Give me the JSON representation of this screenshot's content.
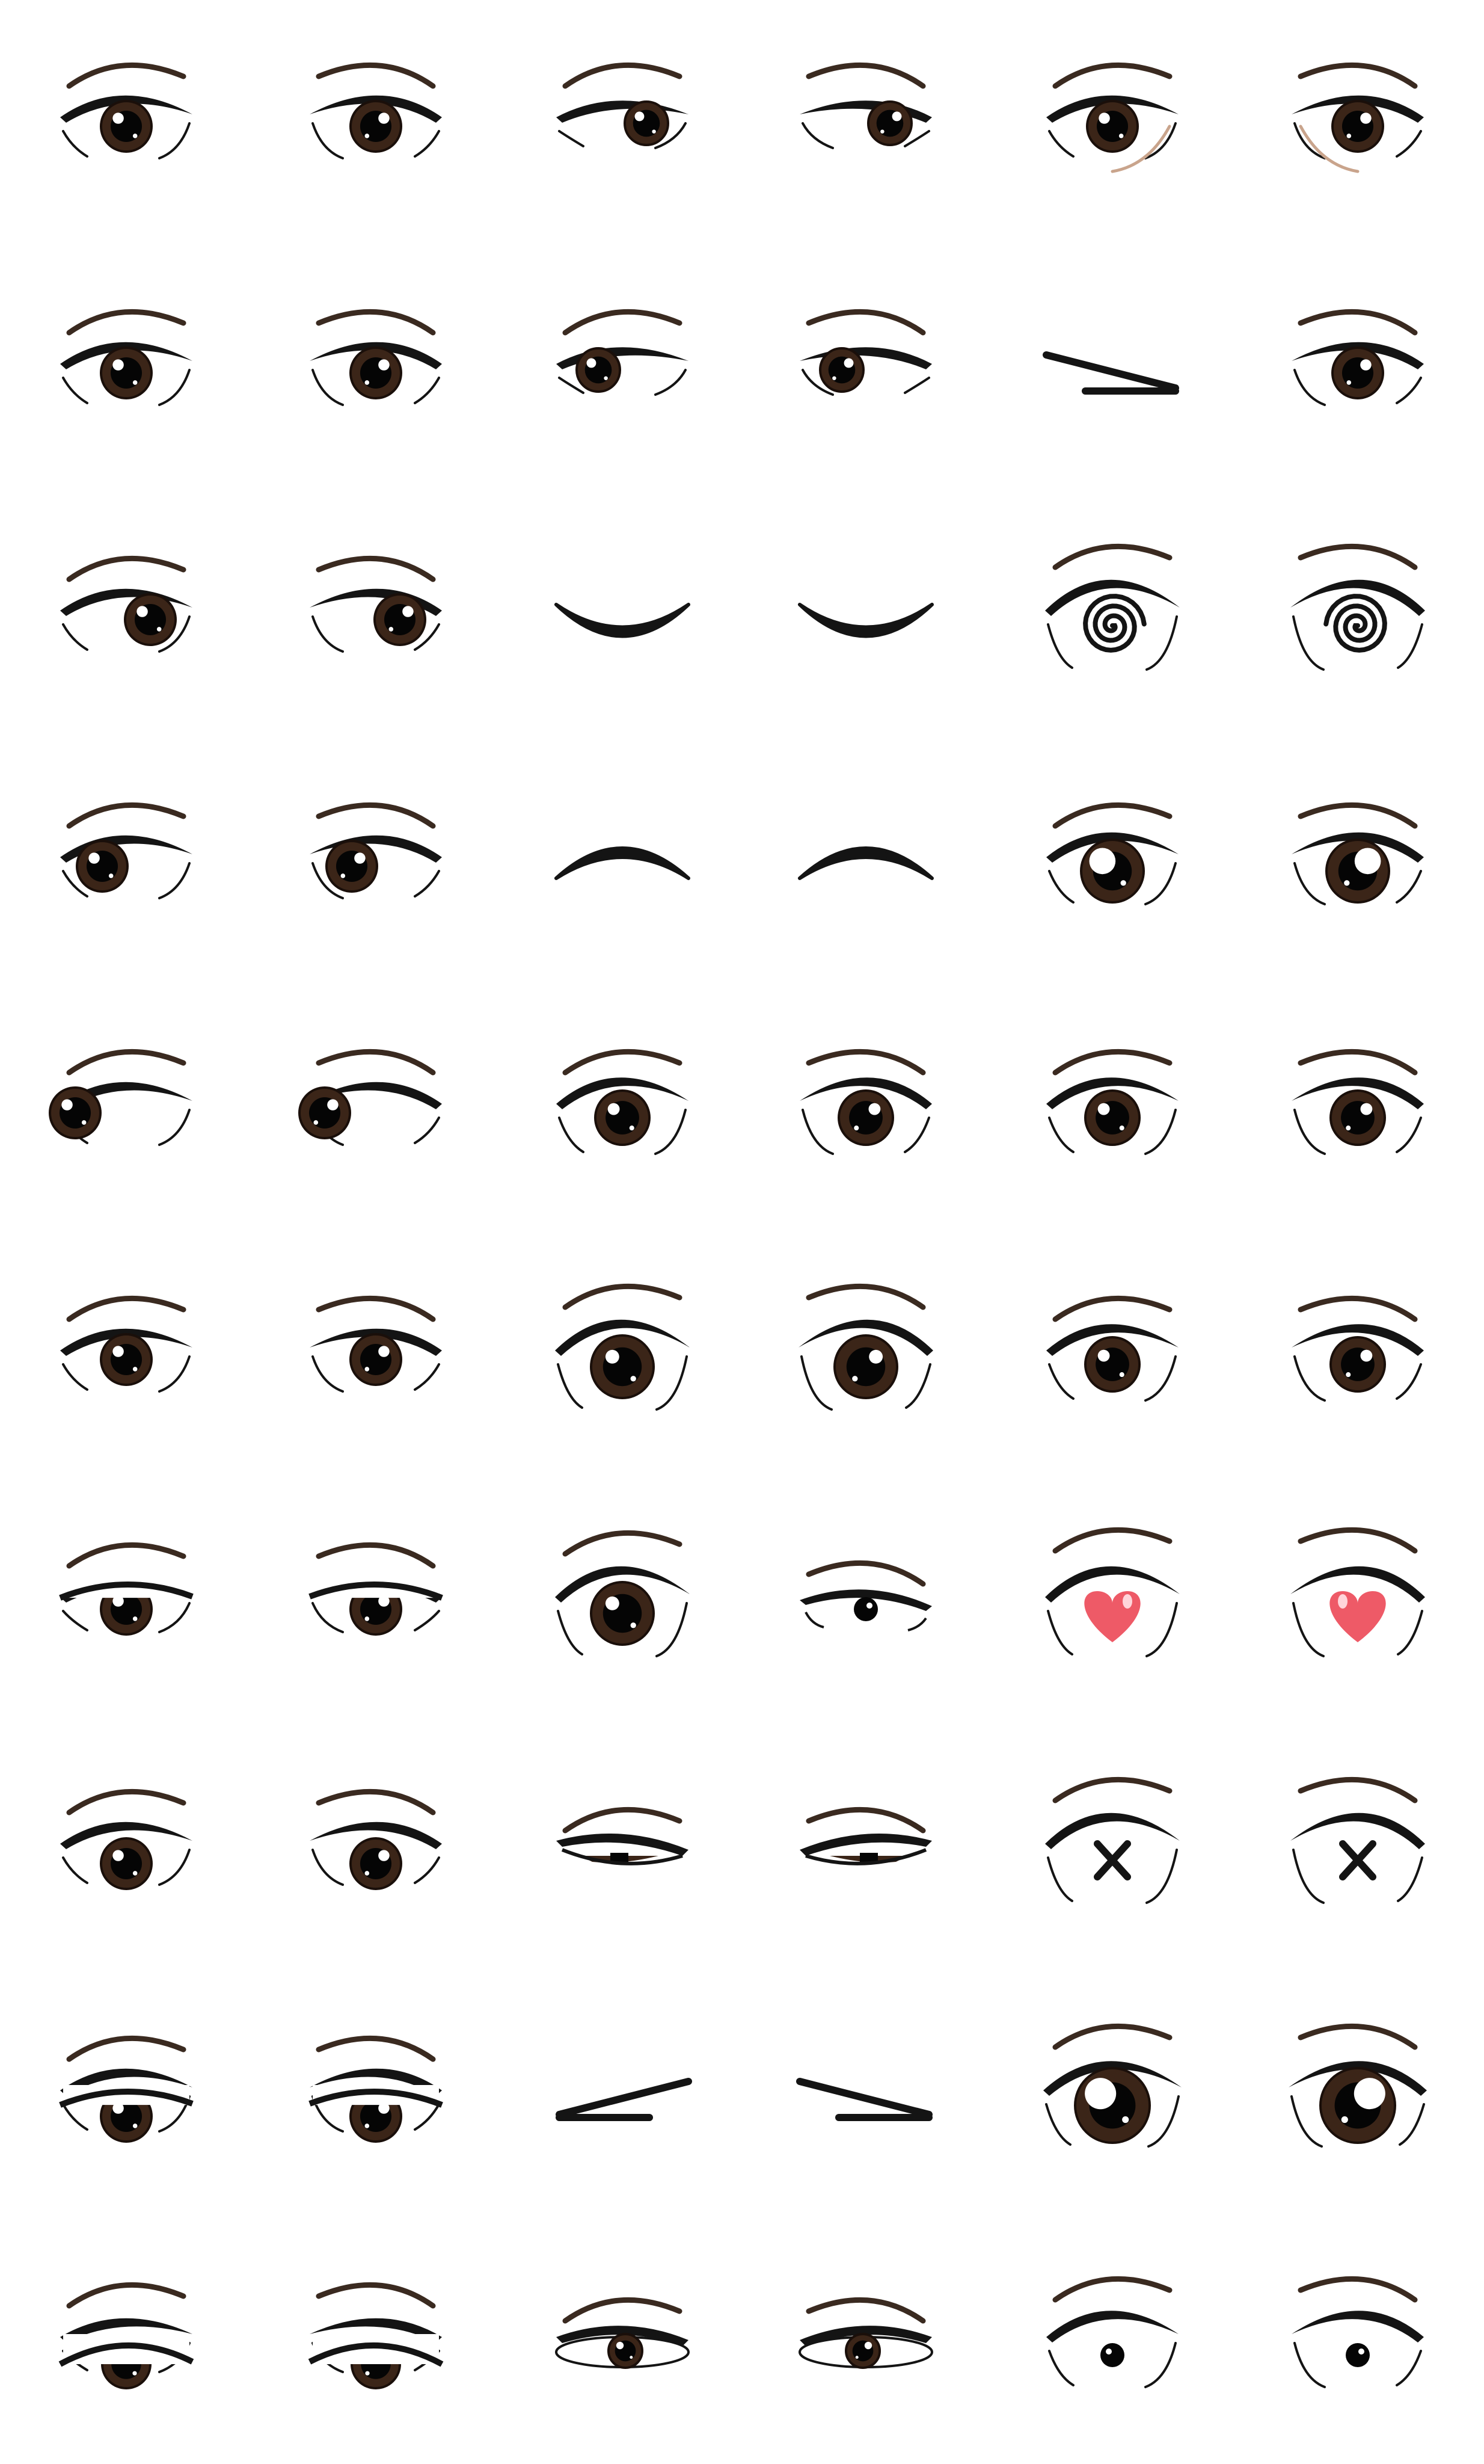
{
  "title": "",
  "colors": {
    "background": "#ffffff",
    "ink": "#141414",
    "brow": "#3a2a20",
    "iris": "#3b2518",
    "iris_ring": "#1a0f0a",
    "pupil": "#050505",
    "highlight": "#ffffff",
    "skin_line": "#c9a48c",
    "heart": "#ee5a67",
    "heart_shine": "#ffd5da"
  },
  "rows": [
    {
      "cells": [
        {
          "kind": "eye",
          "side": "left",
          "look": "center",
          "size": "normal"
        },
        {
          "kind": "eye",
          "side": "right",
          "look": "center",
          "size": "normal"
        },
        {
          "kind": "eye",
          "side": "left",
          "look": "right",
          "size": "narrow"
        },
        {
          "kind": "eye",
          "side": "right",
          "look": "right",
          "size": "narrow"
        },
        {
          "kind": "eye",
          "side": "left",
          "look": "center",
          "size": "normal",
          "extra": "cheek-line"
        },
        {
          "kind": "eye",
          "side": "right",
          "look": "center",
          "size": "normal",
          "extra": "cheek-line"
        }
      ]
    },
    {
      "cells": [
        {
          "kind": "eye",
          "side": "left",
          "look": "center",
          "size": "normal"
        },
        {
          "kind": "eye",
          "side": "right",
          "look": "center",
          "size": "normal"
        },
        {
          "kind": "eye",
          "side": "left",
          "look": "left",
          "size": "narrow"
        },
        {
          "kind": "eye",
          "side": "right",
          "look": "left",
          "size": "narrow"
        },
        {
          "kind": "wink",
          "shape": "left-arrow"
        },
        {
          "kind": "eye",
          "side": "right",
          "look": "center",
          "size": "normal"
        }
      ]
    },
    {
      "cells": [
        {
          "kind": "eye",
          "side": "left",
          "look": "right",
          "size": "normal"
        },
        {
          "kind": "eye",
          "side": "right",
          "look": "right",
          "size": "normal"
        },
        {
          "kind": "closed",
          "shape": "smile"
        },
        {
          "kind": "closed",
          "shape": "smile"
        },
        {
          "kind": "spiral",
          "side": "left"
        },
        {
          "kind": "spiral",
          "side": "right"
        }
      ]
    },
    {
      "cells": [
        {
          "kind": "eye",
          "side": "left",
          "look": "left",
          "size": "normal"
        },
        {
          "kind": "eye",
          "side": "right",
          "look": "left",
          "size": "normal"
        },
        {
          "kind": "closed",
          "shape": "arch"
        },
        {
          "kind": "closed",
          "shape": "arch"
        },
        {
          "kind": "eye",
          "side": "left",
          "look": "center",
          "size": "big-shine"
        },
        {
          "kind": "eye",
          "side": "right",
          "look": "center",
          "size": "big-shine"
        }
      ]
    },
    {
      "cells": [
        {
          "kind": "eye",
          "side": "left",
          "look": "far-left",
          "size": "normal"
        },
        {
          "kind": "eye",
          "side": "right",
          "look": "far-left",
          "size": "normal"
        },
        {
          "kind": "eye",
          "side": "left",
          "look": "center",
          "size": "wide"
        },
        {
          "kind": "eye",
          "side": "right",
          "look": "center",
          "size": "wide"
        },
        {
          "kind": "eye",
          "side": "left",
          "look": "center",
          "size": "wide"
        },
        {
          "kind": "eye",
          "side": "right",
          "look": "center",
          "size": "wide"
        }
      ]
    },
    {
      "cells": [
        {
          "kind": "eye",
          "side": "left",
          "look": "center",
          "size": "normal"
        },
        {
          "kind": "eye",
          "side": "right",
          "look": "center",
          "size": "normal"
        },
        {
          "kind": "eye",
          "side": "left",
          "look": "center",
          "size": "surprised"
        },
        {
          "kind": "eye",
          "side": "right",
          "look": "center",
          "size": "surprised"
        },
        {
          "kind": "eye",
          "side": "left",
          "look": "center",
          "size": "wide"
        },
        {
          "kind": "eye",
          "side": "right",
          "look": "center",
          "size": "wide"
        }
      ]
    },
    {
      "cells": [
        {
          "kind": "eye",
          "side": "left",
          "look": "center",
          "size": "sleepy"
        },
        {
          "kind": "eye",
          "side": "right",
          "look": "center",
          "size": "sleepy"
        },
        {
          "kind": "eye",
          "side": "left",
          "look": "center",
          "size": "surprised"
        },
        {
          "kind": "eye",
          "side": "right",
          "look": "center",
          "size": "dot"
        },
        {
          "kind": "heart",
          "side": "left"
        },
        {
          "kind": "heart",
          "side": "right"
        }
      ]
    },
    {
      "cells": [
        {
          "kind": "eye",
          "side": "left",
          "look": "down",
          "size": "normal"
        },
        {
          "kind": "eye",
          "side": "right",
          "look": "down",
          "size": "normal"
        },
        {
          "kind": "eye",
          "side": "left",
          "look": "center",
          "size": "squint"
        },
        {
          "kind": "eye",
          "side": "right",
          "look": "center",
          "size": "squint"
        },
        {
          "kind": "cross",
          "side": "left"
        },
        {
          "kind": "cross",
          "side": "right"
        }
      ]
    },
    {
      "cells": [
        {
          "kind": "eye",
          "side": "left",
          "look": "low",
          "size": "normal"
        },
        {
          "kind": "eye",
          "side": "right",
          "look": "low",
          "size": "normal"
        },
        {
          "kind": "wink",
          "shape": "right-arrow"
        },
        {
          "kind": "wink",
          "shape": "left-arrow"
        },
        {
          "kind": "eye",
          "side": "left",
          "look": "center",
          "size": "huge"
        },
        {
          "kind": "eye",
          "side": "right",
          "look": "center",
          "size": "huge"
        }
      ]
    },
    {
      "cells": [
        {
          "kind": "eye",
          "side": "left",
          "look": "center",
          "size": "half"
        },
        {
          "kind": "eye",
          "side": "right",
          "look": "center",
          "size": "half"
        },
        {
          "kind": "eye",
          "side": "left",
          "look": "center",
          "size": "squint-open"
        },
        {
          "kind": "eye",
          "side": "right",
          "look": "center",
          "size": "squint-open"
        },
        {
          "kind": "eye",
          "side": "left",
          "look": "center",
          "size": "tiny-pupil"
        },
        {
          "kind": "eye",
          "side": "right",
          "look": "center",
          "size": "tiny-pupil"
        }
      ]
    }
  ]
}
